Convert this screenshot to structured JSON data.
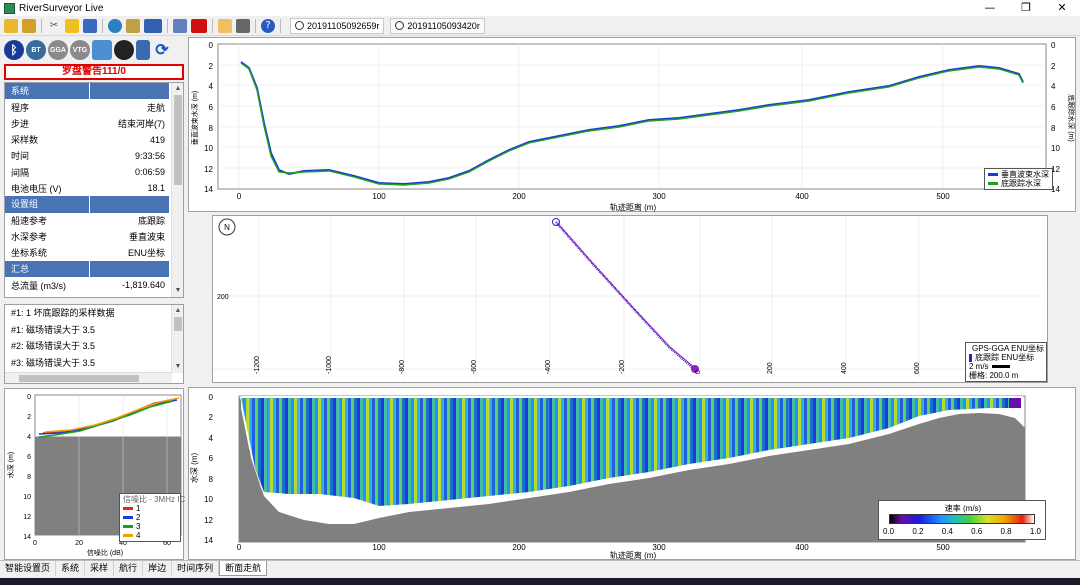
{
  "window": {
    "title": "RiverSurveyor Live",
    "controls": [
      "—",
      "❐",
      "✕"
    ]
  },
  "toolbar": {
    "file_tabs": [
      "20191105092659r",
      "20191105093420r"
    ]
  },
  "left": {
    "status_icons": [
      "BT",
      "GGA",
      "VTG"
    ],
    "alarm": "罗盘警告111/0",
    "property_groups": [
      {
        "header": "系统",
        "rows": [
          {
            "k": "程序",
            "v": "走航"
          },
          {
            "k": "步进",
            "v": "结束河岸(7)"
          },
          {
            "k": "采样数",
            "v": "419"
          },
          {
            "k": "时间",
            "v": "9:33:56"
          },
          {
            "k": "间隔",
            "v": "0:06:59"
          },
          {
            "k": "电池电压 (V)",
            "v": "18.1"
          }
        ]
      },
      {
        "header": "设置组",
        "rows": [
          {
            "k": "船速参考",
            "v": "底跟踪"
          },
          {
            "k": "水深参考",
            "v": "垂直波束"
          },
          {
            "k": "坐标系统",
            "v": "ENU坐标"
          }
        ]
      },
      {
        "header": "汇总",
        "rows": [
          {
            "k": "总流量 (m3/s)",
            "v": "-1,819.640"
          }
        ]
      }
    ],
    "messages": [
      "#1: 1 坏底跟踪的采样数据",
      "#1: 磁场错误大于 3.5",
      "#2: 磁场错误大于 3.5",
      "#3: 磁场错误大于 3.5"
    ],
    "snr": {
      "ylabel": "水深 (m)",
      "xlabel": "信噪比 (dB)",
      "xticks": [
        "0",
        "20",
        "40",
        "60"
      ],
      "yticks": [
        "0",
        "2",
        "4",
        "6",
        "8",
        "10",
        "12",
        "14"
      ],
      "legend_title": "信噪比 - 3MHz IC",
      "legend": [
        {
          "name": "1",
          "color": "#e82020"
        },
        {
          "name": "2",
          "color": "#1a3adc"
        },
        {
          "name": "3",
          "color": "#20a020"
        },
        {
          "name": "4",
          "color": "#f0a000"
        }
      ]
    }
  },
  "depth_chart": {
    "ylabel_left": "垂直波束水深 (m)",
    "ylabel_right": "底跟踪水深 (m)",
    "xlabel": "轨迹距离 (m)",
    "yticks": [
      "0",
      "2",
      "4",
      "6",
      "8",
      "10",
      "12",
      "14"
    ],
    "xticks": [
      "0",
      "100",
      "200",
      "300",
      "400",
      "500"
    ],
    "legend": [
      {
        "name": "垂直波束水深",
        "color": "#1a3adc"
      },
      {
        "name": "底跟踪水深",
        "color": "#20a020"
      }
    ]
  },
  "track_chart": {
    "north_label": "N",
    "y_tick": "200",
    "xticks": [
      "-1200",
      "-1000",
      "-800",
      "-600",
      "-400",
      "-200",
      "0",
      "200",
      "400",
      "600"
    ],
    "legend": [
      {
        "name": "GPS-GGA ENU坐标",
        "color": "#9020c0"
      },
      {
        "name": "底跟踪 ENU坐标",
        "color": "#3020c0"
      }
    ],
    "scale_speed": "2 m/s",
    "grid_label": "栅格: 200.0 m"
  },
  "section_chart": {
    "ylabel": "水深 (m)",
    "xlabel": "轨迹距离 (m)",
    "yticks": [
      "0",
      "2",
      "4",
      "6",
      "8",
      "10",
      "12",
      "14"
    ],
    "xticks": [
      "0",
      "100",
      "200",
      "300",
      "400",
      "500"
    ],
    "colorbar_title": "速率 (m/s)",
    "colorbar_ticks": [
      "0.0",
      "0.2",
      "0.4",
      "0.6",
      "0.8",
      "1.0"
    ]
  },
  "bottom_tabs": [
    "智能设置页",
    "系统",
    "采样",
    "航行",
    "岸边",
    "时间序列",
    "断面走航"
  ],
  "active_tab": "断面走航"
}
